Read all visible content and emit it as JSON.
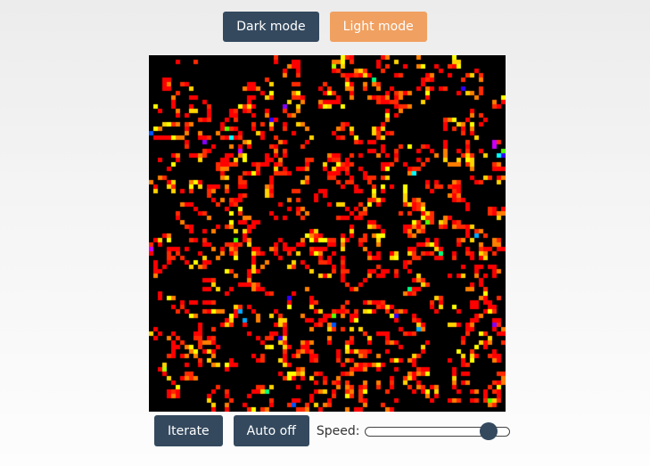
{
  "toolbar": {
    "dark_mode_label": "Dark mode",
    "light_mode_label": "Light mode"
  },
  "controls": {
    "iterate_label": "Iterate",
    "auto_label": "Auto off",
    "speed_label": "Speed:",
    "speed_value": 0.86
  },
  "board": {
    "background": "#000000",
    "palette": [
      "#ff0000",
      "#ff2a00",
      "#ff5500",
      "#ff7f00",
      "#ffaa00",
      "#ffd400",
      "#ffff00",
      "#aaff00",
      "#55ff00",
      "#00ff7f",
      "#00ffff",
      "#00aaff",
      "#0055ff",
      "#3300ff",
      "#8800ff",
      "#cc00ff"
    ]
  },
  "colors": {
    "dark_button": "#34495e",
    "light_button": "#f0a060"
  }
}
